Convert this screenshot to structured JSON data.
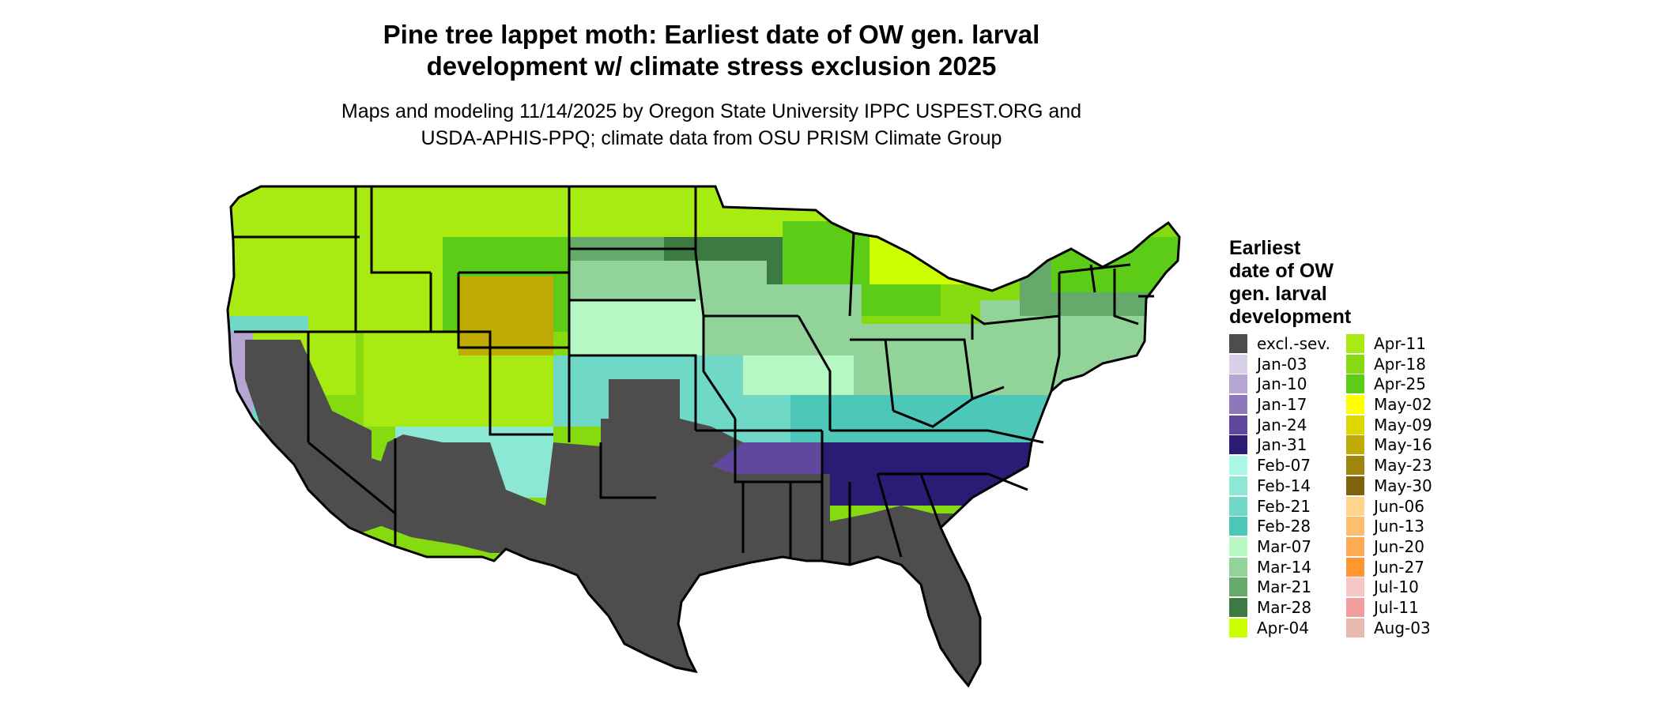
{
  "header": {
    "title_line1": "Pine tree lappet moth: Earliest date of OW gen. larval",
    "title_line2": "development w/ climate stress exclusion 2025",
    "subtitle_line1": "Maps and modeling 11/14/2025 by Oregon State University IPPC USPEST.ORG and",
    "subtitle_line2": "USDA-APHIS-PPQ; climate data from OSU PRISM Climate Group"
  },
  "legend": {
    "title_lines": [
      "Earliest",
      "date of OW",
      "gen. larval",
      "development"
    ],
    "col1": [
      {
        "label": "excl.-sev.",
        "color": "#4d4d4d"
      },
      {
        "label": "Jan-03",
        "color": "#d9d0ea"
      },
      {
        "label": "Jan-10",
        "color": "#b4a5d2"
      },
      {
        "label": "Jan-17",
        "color": "#8e78b9"
      },
      {
        "label": "Jan-24",
        "color": "#60489f"
      },
      {
        "label": "Jan-31",
        "color": "#2c1b74"
      },
      {
        "label": "Feb-07",
        "color": "#a9f7e4"
      },
      {
        "label": "Feb-14",
        "color": "#8ce8d4"
      },
      {
        "label": "Feb-21",
        "color": "#6fd8c7"
      },
      {
        "label": "Feb-28",
        "color": "#4cc7b8"
      },
      {
        "label": "Mar-07",
        "color": "#b7f7c3"
      },
      {
        "label": "Mar-14",
        "color": "#92d39a"
      },
      {
        "label": "Mar-21",
        "color": "#65a96b"
      },
      {
        "label": "Mar-28",
        "color": "#3d7a42"
      },
      {
        "label": "Apr-04",
        "color": "#ccff00"
      }
    ],
    "col2": [
      {
        "label": "Apr-11",
        "color": "#a8eb12"
      },
      {
        "label": "Apr-18",
        "color": "#86db10"
      },
      {
        "label": "Apr-25",
        "color": "#5dcc16"
      },
      {
        "label": "May-02",
        "color": "#ffff00"
      },
      {
        "label": "May-09",
        "color": "#dfd700"
      },
      {
        "label": "May-16",
        "color": "#bfaa06"
      },
      {
        "label": "May-23",
        "color": "#9f850b"
      },
      {
        "label": "May-30",
        "color": "#80620a"
      },
      {
        "label": "Jun-06",
        "color": "#ffd58c"
      },
      {
        "label": "Jun-13",
        "color": "#ffbe6e"
      },
      {
        "label": "Jun-20",
        "color": "#ffab54"
      },
      {
        "label": "Jun-27",
        "color": "#ff9634"
      },
      {
        "label": "Jul-10",
        "color": "#f7c6c6"
      },
      {
        "label": "Jul-11",
        "color": "#f29d9d"
      },
      {
        "label": "Aug-03",
        "color": "#e8b9ae"
      }
    ]
  }
}
